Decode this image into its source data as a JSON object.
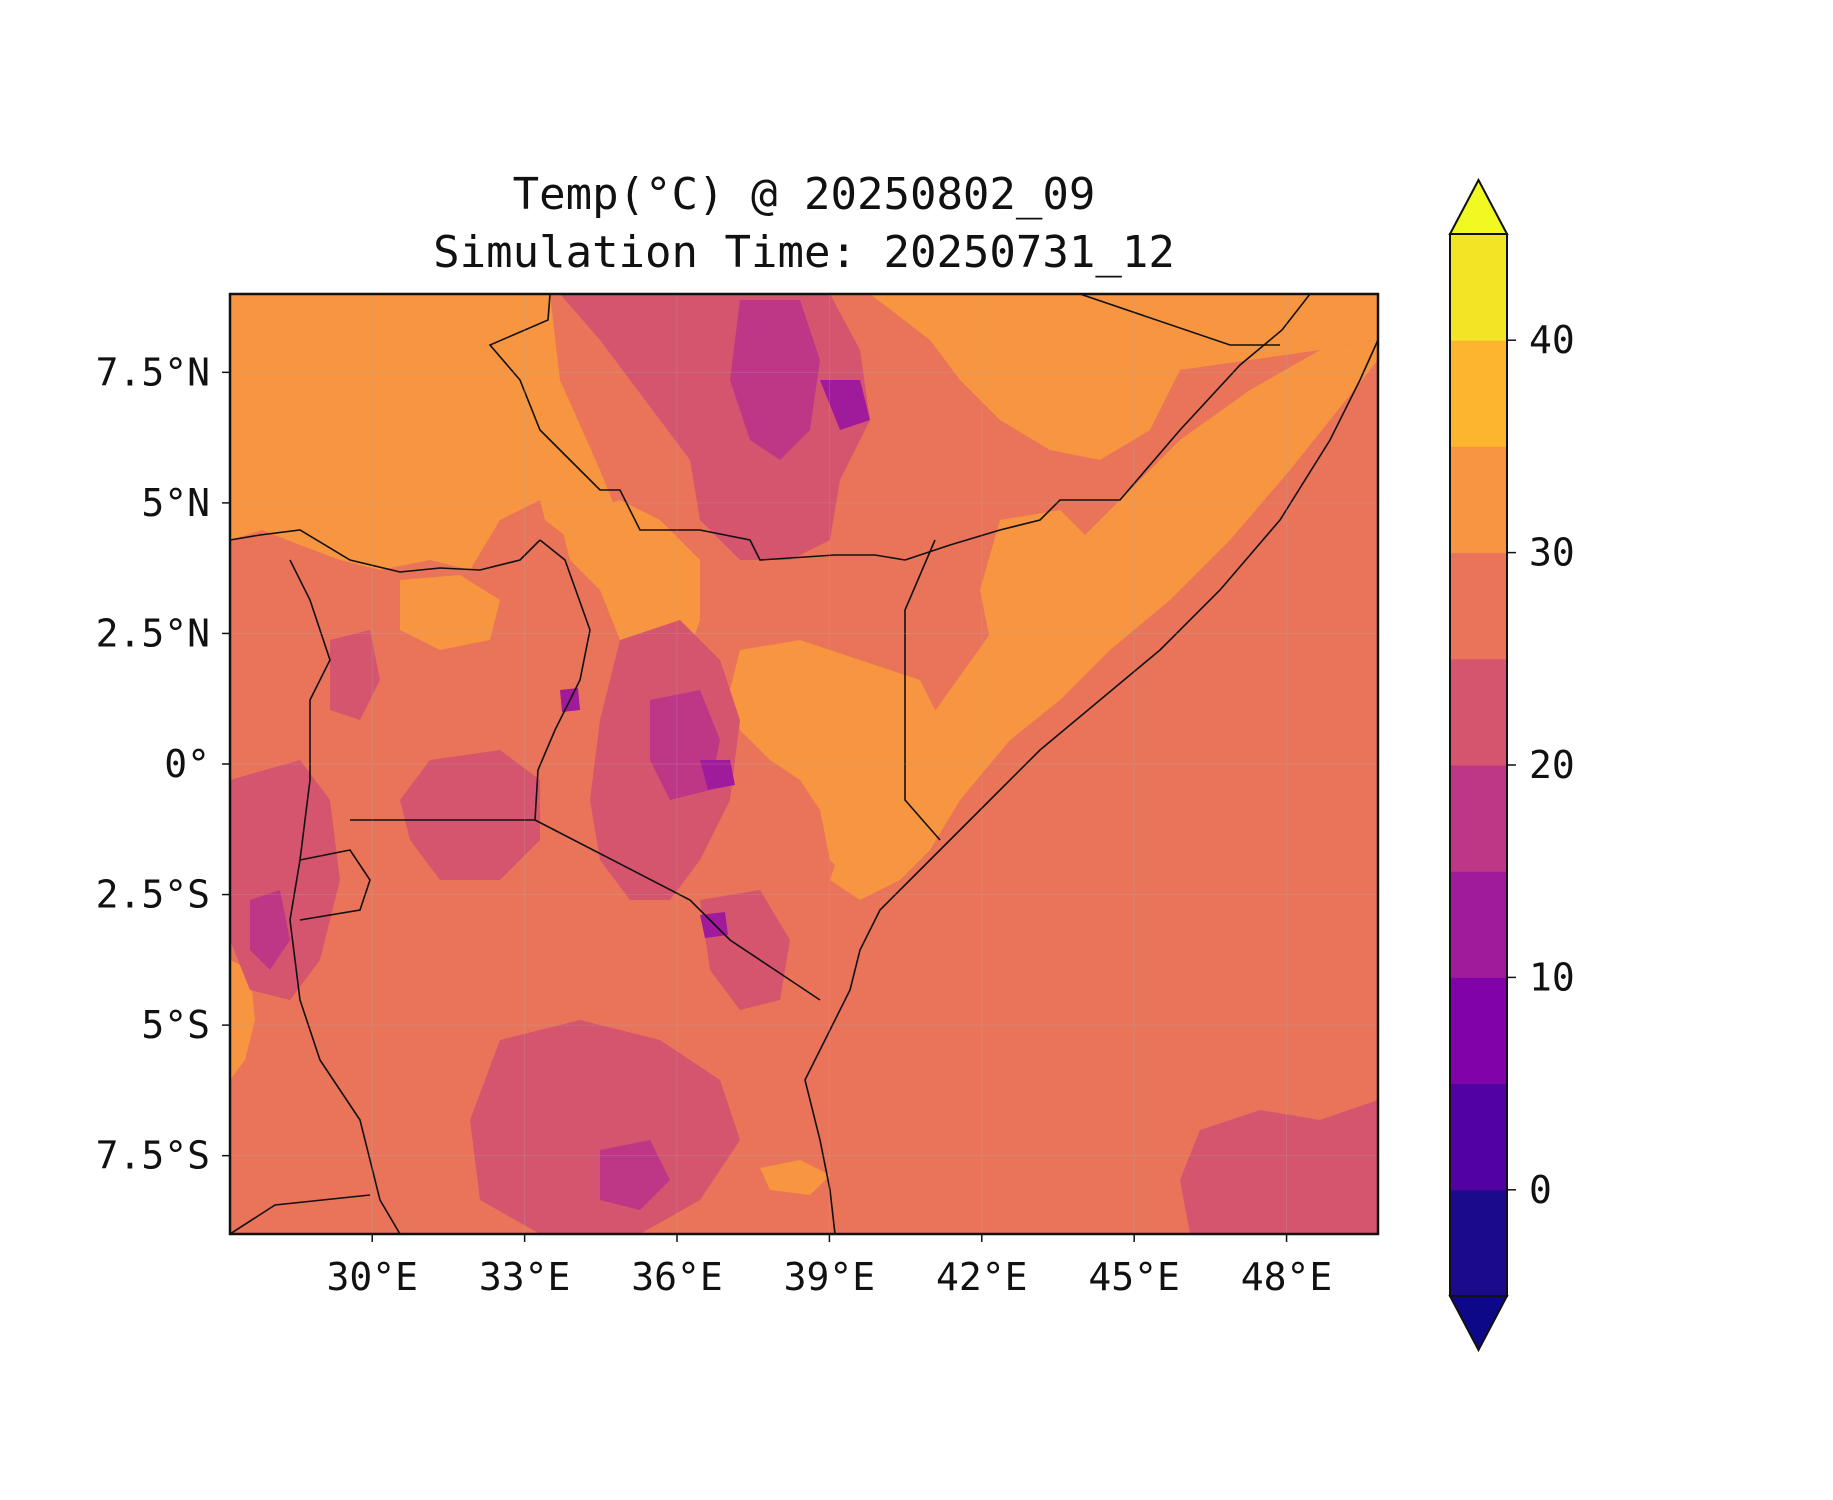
{
  "title": {
    "line1": "Temp(°C) @ 20250802_09",
    "line2": "Simulation Time: 20250731_12"
  },
  "map": {
    "variable": "Temp(°C)",
    "lon_range": [
      27.2,
      49.8
    ],
    "lat_range": [
      -9.0,
      9.0
    ],
    "x_ticks": [
      {
        "lon": 30,
        "label": "30°E"
      },
      {
        "lon": 33,
        "label": "33°E"
      },
      {
        "lon": 36,
        "label": "36°E"
      },
      {
        "lon": 39,
        "label": "39°E"
      },
      {
        "lon": 42,
        "label": "42°E"
      },
      {
        "lon": 45,
        "label": "45°E"
      },
      {
        "lon": 48,
        "label": "48°E"
      }
    ],
    "y_ticks": [
      {
        "lat": 7.5,
        "label": "7.5°N"
      },
      {
        "lat": 5,
        "label": "5°N"
      },
      {
        "lat": 2.5,
        "label": "2.5°N"
      },
      {
        "lat": 0,
        "label": "0°"
      },
      {
        "lat": -2.5,
        "label": "2.5°S"
      },
      {
        "lat": -5,
        "label": "5°S"
      },
      {
        "lat": -7.5,
        "label": "7.5°S"
      }
    ],
    "grid": true,
    "background_level_color": "#e9745a"
  },
  "colorbar": {
    "vmin": -5,
    "vmax": 45,
    "extend": "both",
    "ticks": [
      {
        "value": 0,
        "label": "0"
      },
      {
        "value": 10,
        "label": "10"
      },
      {
        "value": 20,
        "label": "20"
      },
      {
        "value": 30,
        "label": "30"
      },
      {
        "value": 40,
        "label": "40"
      }
    ],
    "levels": [
      {
        "from": -5,
        "to": 0,
        "color": "#1b0a8c"
      },
      {
        "from": 0,
        "to": 5,
        "color": "#5202a3"
      },
      {
        "from": 5,
        "to": 10,
        "color": "#7f03a8"
      },
      {
        "from": 10,
        "to": 15,
        "color": "#a01a9c"
      },
      {
        "from": 15,
        "to": 20,
        "color": "#bd3786"
      },
      {
        "from": 20,
        "to": 25,
        "color": "#d5546e"
      },
      {
        "from": 25,
        "to": 30,
        "color": "#e9745a"
      },
      {
        "from": 30,
        "to": 35,
        "color": "#f79540"
      },
      {
        "from": 35,
        "to": 40,
        "color": "#fdb42f"
      },
      {
        "from": 40,
        "to": 45,
        "color": "#f1e525"
      }
    ],
    "under_color": "#0d0887",
    "over_color": "#f0f921"
  }
}
